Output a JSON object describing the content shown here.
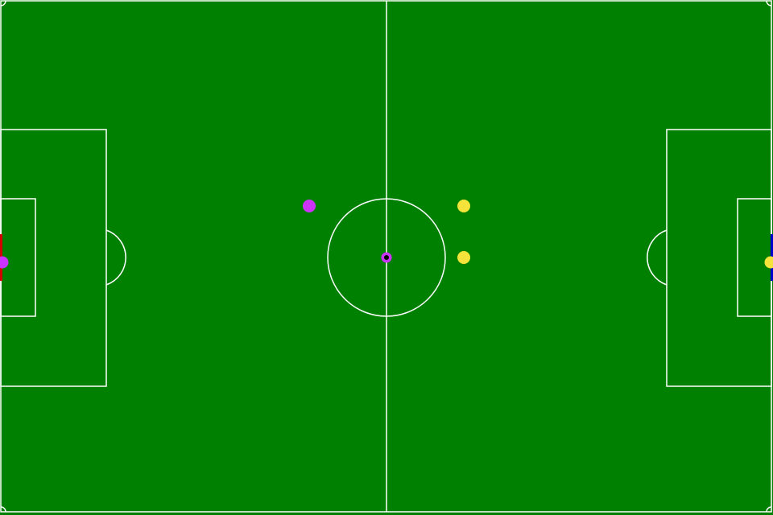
{
  "field": {
    "grass_color": "#008000",
    "line_color": "#ffffff",
    "left_goal_color": "#d40000",
    "right_goal_color": "#0000cc"
  },
  "teams": {
    "left": {
      "color": "#cc33ff"
    },
    "right": {
      "color": "#f5e23a"
    }
  },
  "ball": {
    "color": "#cc33ff",
    "center_color": "#000000"
  }
}
